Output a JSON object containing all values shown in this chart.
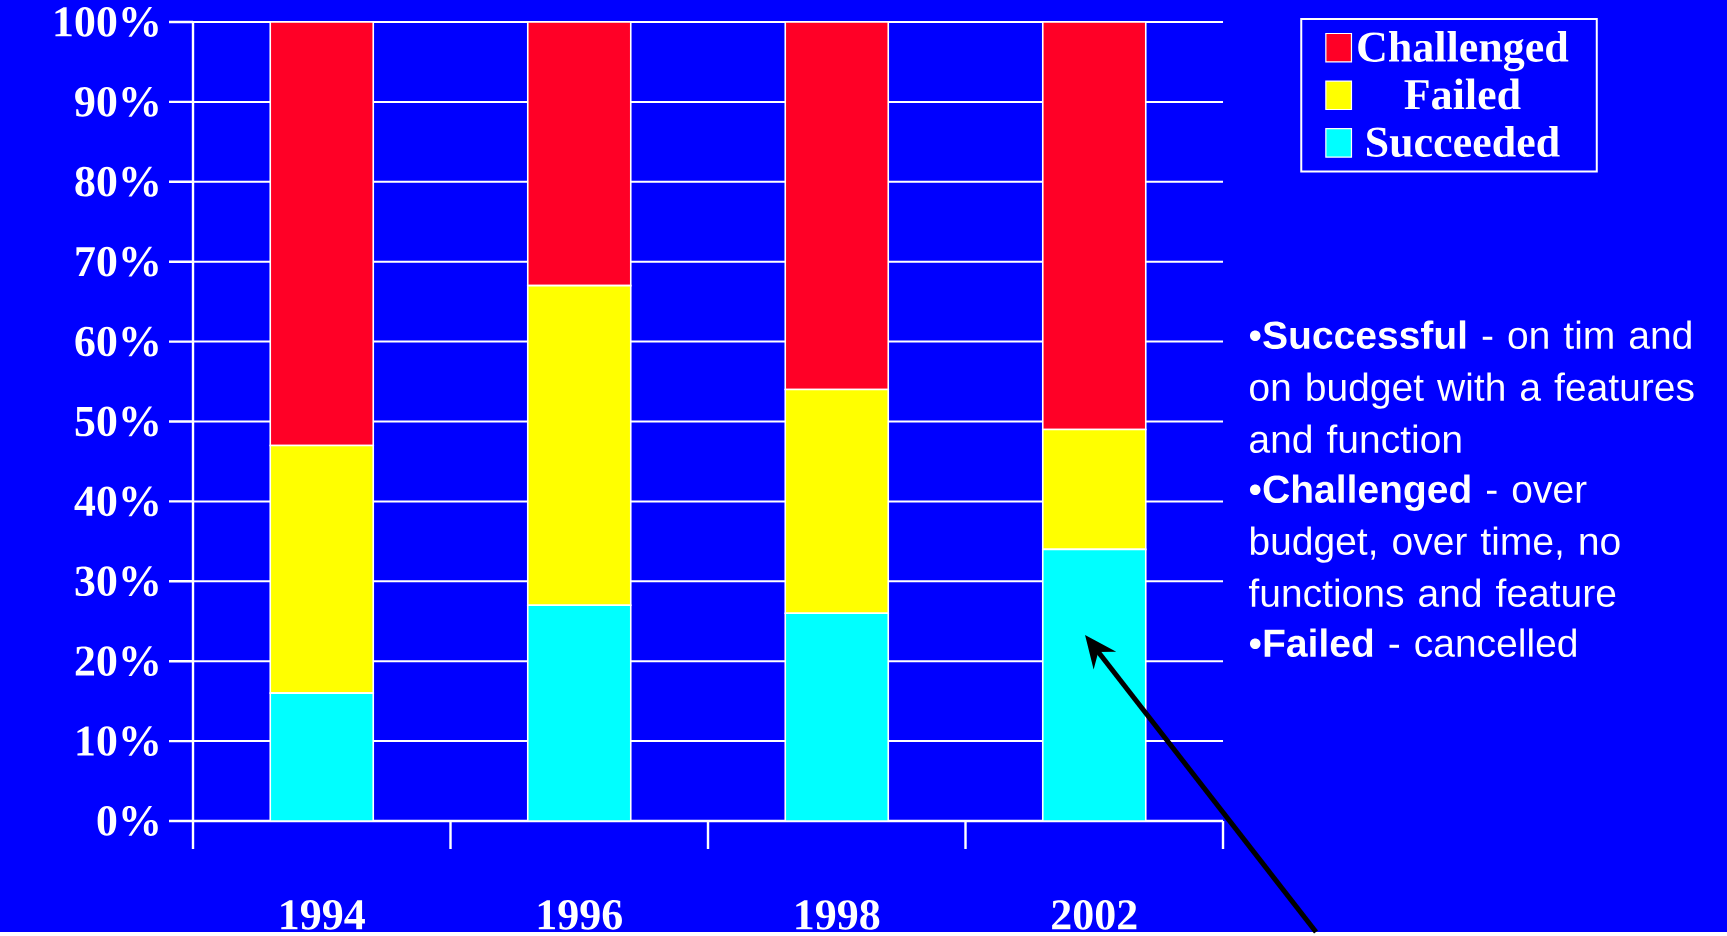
{
  "chart_data": {
    "type": "bar",
    "stacked": true,
    "categories": [
      "1994",
      "1996",
      "1998",
      "2002"
    ],
    "series": [
      {
        "name": "Succeeded",
        "color": "#00ffff",
        "values": [
          16,
          27,
          26,
          34
        ]
      },
      {
        "name": "Failed",
        "color": "#ffff00",
        "values": [
          31,
          40,
          28,
          15
        ]
      },
      {
        "name": "Challenged",
        "color": "#ff0026",
        "values": [
          53,
          33,
          46,
          51
        ]
      }
    ],
    "ylim": [
      0,
      100
    ],
    "yticks": [
      {
        "value": 0,
        "label": "0%"
      },
      {
        "value": 10,
        "label": "10%"
      },
      {
        "value": 20,
        "label": "20%"
      },
      {
        "value": 30,
        "label": "30%"
      },
      {
        "value": 40,
        "label": "40%"
      },
      {
        "value": 50,
        "label": "50%"
      },
      {
        "value": 60,
        "label": "60%"
      },
      {
        "value": 70,
        "label": "70%"
      },
      {
        "value": 80,
        "label": "80%"
      },
      {
        "value": 90,
        "label": "90%"
      },
      {
        "value": 100,
        "label": "100%"
      }
    ],
    "grid": "y",
    "legend": "top right",
    "annotations": [
      "•**Successful** - on tim and on budget with a features and function",
      "•**Challenged** - over budget, over time, no functions and feature",
      "•**Failed** - cancelled"
    ]
  }
}
